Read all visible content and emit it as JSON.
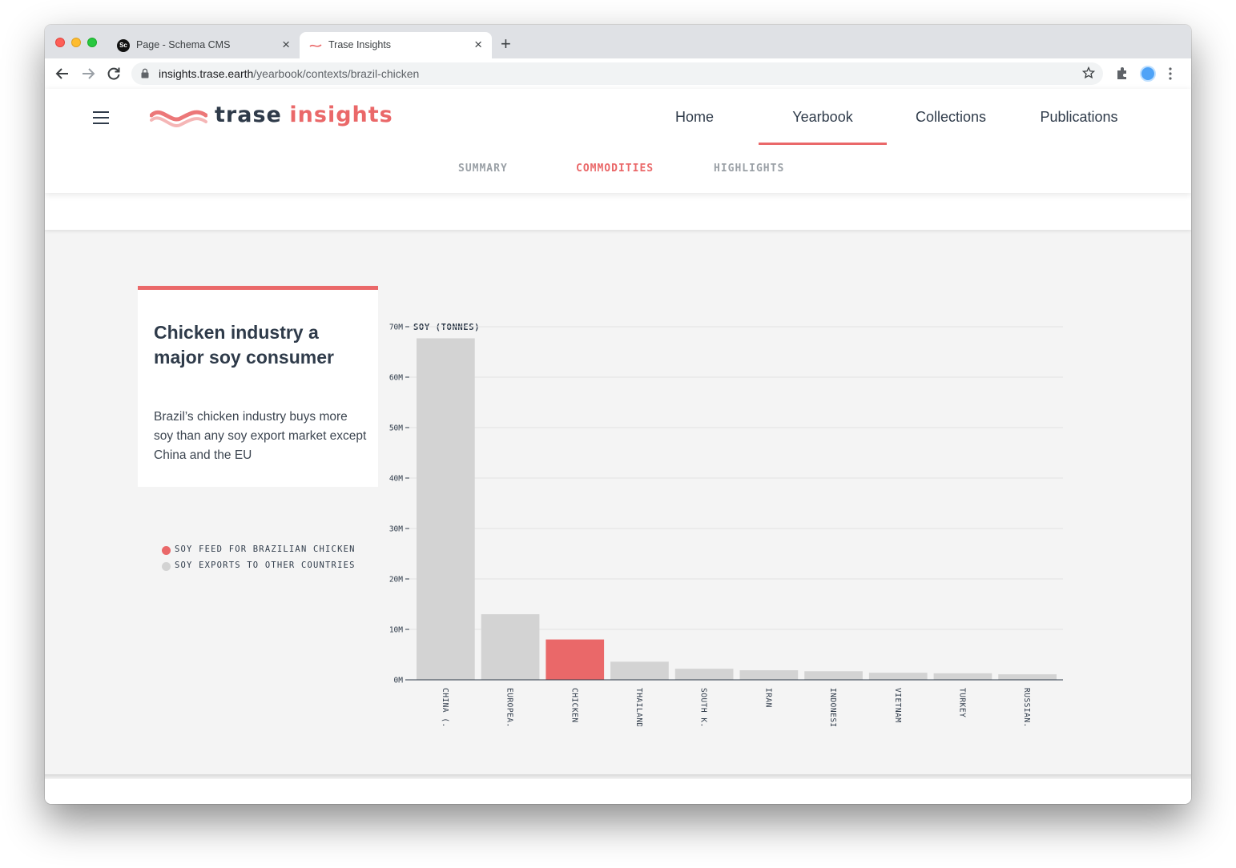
{
  "browser": {
    "tabs": [
      {
        "title": "Page - Schema CMS",
        "favicon": "schema-cms-icon",
        "active": false
      },
      {
        "title": "Trase Insights",
        "favicon": "trase-icon",
        "active": true
      }
    ],
    "url_host": "insights.trase.earth",
    "url_path": "/yearbook/contexts/brazil-chicken"
  },
  "site": {
    "logo": {
      "word1": "trase",
      "word2": "insights"
    },
    "nav": [
      {
        "label": "Home",
        "active": false
      },
      {
        "label": "Yearbook",
        "active": true
      },
      {
        "label": "Collections",
        "active": false
      },
      {
        "label": "Publications",
        "active": false
      }
    ],
    "subnav": [
      {
        "label": "SUMMARY",
        "active": false
      },
      {
        "label": "COMMODITIES",
        "active": true
      },
      {
        "label": "HIGHLIGHTS",
        "active": false
      }
    ],
    "accent_color": "#ea6869",
    "text_color": "#2f3b4a"
  },
  "card": {
    "title": "Chicken industry a major soy consumer",
    "body": "Brazil’s chicken industry buys more soy than any soy export market except China and the EU"
  },
  "legend": [
    {
      "label": "SOY FEED FOR BRAZILIAN CHICKEN",
      "color": "#ea6869"
    },
    {
      "label": "SOY EXPORTS TO OTHER COUNTRIES",
      "color": "#d3d3d3"
    }
  ],
  "chart_data": {
    "type": "bar",
    "ylabel": "SOY (TONNES)",
    "ylim": [
      0,
      70000000
    ],
    "yticks": [
      0,
      10000000,
      20000000,
      30000000,
      40000000,
      50000000,
      60000000,
      70000000
    ],
    "ytick_labels": [
      "0M",
      "10M",
      "20M",
      "30M",
      "40M",
      "50M",
      "60M",
      "70M"
    ],
    "categories": [
      "CHINA (..",
      "EUROPEA..",
      "CHICKEN",
      "THAILAND",
      "SOUTH K..",
      "IRAN",
      "INDONESIA",
      "VIETNAM",
      "TURKEY",
      "RUSSIAN.."
    ],
    "values": [
      67700000,
      13000000,
      8000000,
      3600000,
      2200000,
      1900000,
      1700000,
      1400000,
      1300000,
      1100000
    ],
    "highlight": [
      false,
      false,
      true,
      false,
      false,
      false,
      false,
      false,
      false,
      false
    ],
    "colors": {
      "highlight": "#ea6869",
      "default": "#d3d3d3"
    },
    "grid": true
  }
}
